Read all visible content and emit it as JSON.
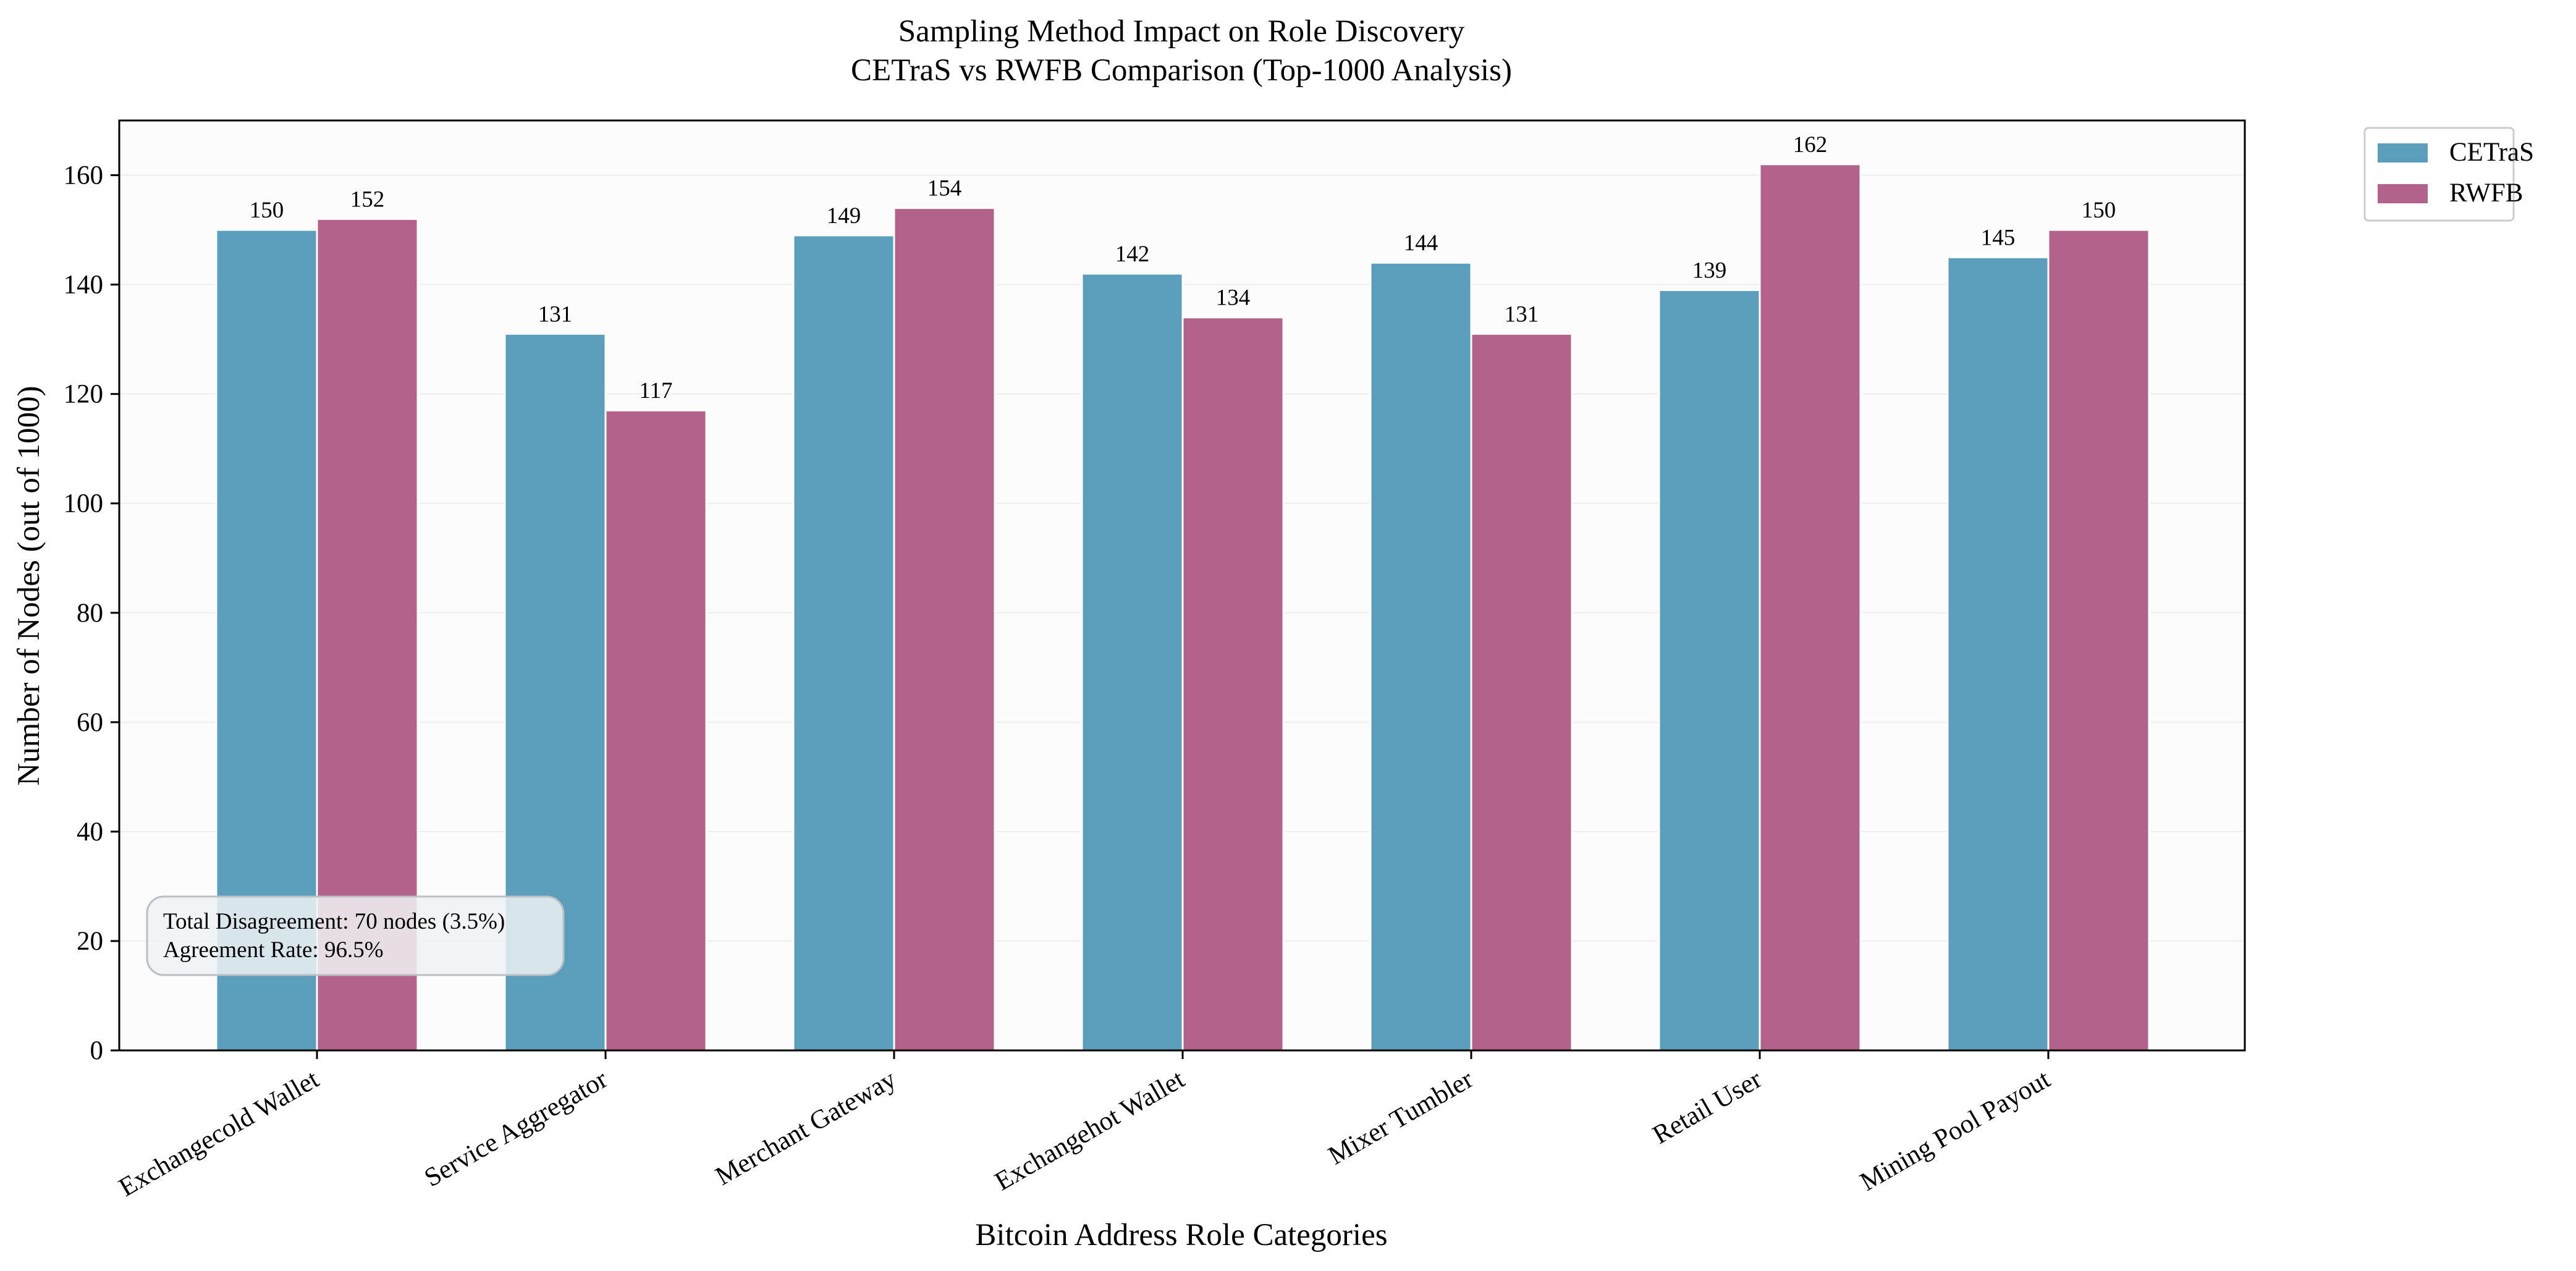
{
  "chart_data": {
    "type": "bar",
    "title": "Sampling Method Impact on Role Discovery",
    "subtitle": "CETraS vs RWFB Comparison (Top-1000 Analysis)",
    "xlabel": "Bitcoin Address Role Categories",
    "ylabel": "Number of Nodes (out of 1000)",
    "ylim": [
      0,
      170
    ],
    "yticks": [
      0,
      20,
      40,
      60,
      80,
      100,
      120,
      140,
      160
    ],
    "grid": true,
    "legend_position": "outside top-right",
    "categories": [
      "Exchangecold Wallet",
      "Service Aggregator",
      "Merchant Gateway",
      "Exchangehot Wallet",
      "Mixer Tumbler",
      "Retail User",
      "Mining Pool Payout"
    ],
    "series": [
      {
        "name": "CETraS",
        "color": "#5a9ebc",
        "values": [
          150,
          131,
          149,
          142,
          144,
          139,
          145
        ]
      },
      {
        "name": "RWFB",
        "color": "#b3638b",
        "values": [
          152,
          117,
          154,
          134,
          131,
          162,
          150
        ]
      }
    ],
    "annotation": {
      "line1": "Total Disagreement: 70 nodes (3.5%)",
      "line2": "Agreement Rate: 96.5%"
    }
  }
}
